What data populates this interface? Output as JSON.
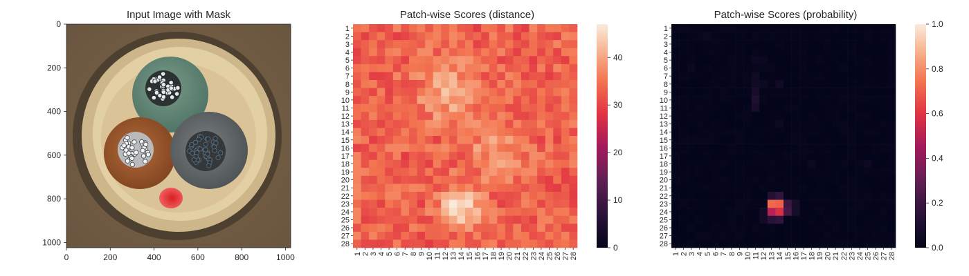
{
  "chart_data": [
    {
      "type": "image",
      "title": "Input Image with Mask",
      "xticks": [
        "0",
        "200",
        "400",
        "600",
        "800",
        "1000"
      ],
      "yticks": [
        "0",
        "200",
        "400",
        "600",
        "800",
        "1000"
      ],
      "xlim": [
        0,
        1024
      ],
      "ylim": [
        1024,
        0
      ],
      "content": "cable cross-section photo with red anomaly mask near x≈480,y≈800"
    },
    {
      "type": "heatmap",
      "title": "Patch-wise Scores (distance)",
      "rows": 28,
      "cols": 28,
      "colorbar": {
        "min": 0,
        "max": 47,
        "ticks": [
          "0",
          "10",
          "20",
          "30",
          "40"
        ],
        "colormap": "rocket"
      },
      "row_labels": [
        "1",
        "2",
        "3",
        "4",
        "5",
        "6",
        "7",
        "8",
        "9",
        "10",
        "11",
        "12",
        "13",
        "14",
        "15",
        "16",
        "17",
        "18",
        "19",
        "20",
        "21",
        "22",
        "23",
        "24",
        "25",
        "26",
        "27",
        "28"
      ],
      "col_labels": [
        "1",
        "2",
        "3",
        "4",
        "5",
        "6",
        "7",
        "8",
        "9",
        "10",
        "11",
        "12",
        "13",
        "14",
        "15",
        "16",
        "17",
        "18",
        "19",
        "20",
        "21",
        "22",
        "23",
        "24",
        "25",
        "26",
        "27",
        "28"
      ],
      "base_value": 33,
      "hotspots": [
        {
          "row": 23.5,
          "col": 14,
          "value": 47,
          "spread": 1.6
        },
        {
          "row": 9,
          "col": 12.5,
          "value": 41,
          "spread": 2.5
        },
        {
          "row": 16.5,
          "col": 18,
          "value": 38,
          "spread": 2.5
        }
      ]
    },
    {
      "type": "heatmap",
      "title": "Patch-wise Scores (probability)",
      "rows": 28,
      "cols": 28,
      "colorbar": {
        "min": 0,
        "max": 1,
        "ticks": [
          "0.0",
          "0.2",
          "0.4",
          "0.6",
          "0.8",
          "1.0"
        ],
        "colormap": "rocket"
      },
      "row_labels": [
        "1",
        "2",
        "3",
        "4",
        "5",
        "6",
        "7",
        "8",
        "9",
        "10",
        "11",
        "12",
        "13",
        "14",
        "15",
        "16",
        "17",
        "18",
        "19",
        "20",
        "21",
        "22",
        "23",
        "24",
        "25",
        "26",
        "27",
        "28"
      ],
      "col_labels": [
        "1",
        "2",
        "3",
        "4",
        "5",
        "6",
        "7",
        "8",
        "9",
        "10",
        "11",
        "12",
        "13",
        "14",
        "15",
        "16",
        "17",
        "18",
        "19",
        "20",
        "21",
        "22",
        "23",
        "24",
        "25",
        "26",
        "27",
        "28"
      ],
      "base_value": 0.0,
      "cells": [
        {
          "row": 23,
          "col": 13,
          "value": 0.72
        },
        {
          "row": 23,
          "col": 14,
          "value": 0.7
        },
        {
          "row": 24,
          "col": 13,
          "value": 0.5
        },
        {
          "row": 24,
          "col": 14,
          "value": 0.58
        },
        {
          "row": 22,
          "col": 13,
          "value": 0.12
        },
        {
          "row": 22,
          "col": 14,
          "value": 0.16
        },
        {
          "row": 23,
          "col": 15,
          "value": 0.2
        },
        {
          "row": 24,
          "col": 15,
          "value": 0.22
        },
        {
          "row": 23,
          "col": 16,
          "value": 0.08
        },
        {
          "row": 24,
          "col": 16,
          "value": 0.08
        },
        {
          "row": 25,
          "col": 13,
          "value": 0.14
        },
        {
          "row": 25,
          "col": 14,
          "value": 0.16
        },
        {
          "row": 25,
          "col": 12,
          "value": 0.06
        },
        {
          "row": 24,
          "col": 12,
          "value": 0.06
        },
        {
          "row": 10,
          "col": 11,
          "value": 0.1
        },
        {
          "row": 9,
          "col": 11,
          "value": 0.08
        },
        {
          "row": 11,
          "col": 11,
          "value": 0.08
        },
        {
          "row": 8,
          "col": 11,
          "value": 0.06
        },
        {
          "row": 7,
          "col": 11,
          "value": 0.05
        },
        {
          "row": 8,
          "col": 12,
          "value": 0.04
        },
        {
          "row": 5,
          "col": 11,
          "value": 0.04
        },
        {
          "row": 5,
          "col": 12,
          "value": 0.03
        },
        {
          "row": 8,
          "col": 14,
          "value": 0.05
        },
        {
          "row": 2,
          "col": 5,
          "value": 0.03
        },
        {
          "row": 6,
          "col": 3,
          "value": 0.03
        },
        {
          "row": 18,
          "col": 18,
          "value": 0.03
        },
        {
          "row": 18,
          "col": 25,
          "value": 0.04
        },
        {
          "row": 13,
          "col": 14,
          "value": 0.03
        }
      ]
    }
  ]
}
